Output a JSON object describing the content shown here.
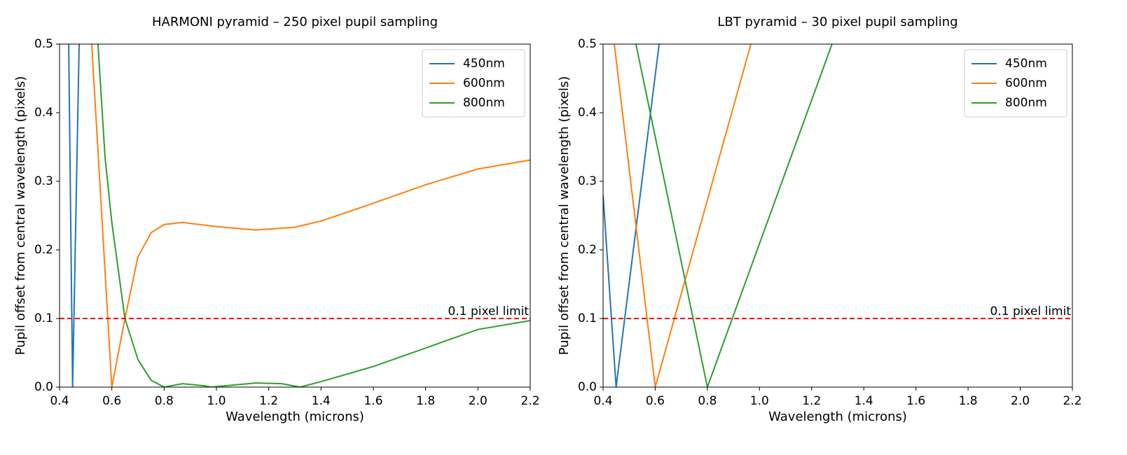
{
  "chart_data": [
    {
      "type": "line",
      "title": "HARMONI pyramid – 250 pixel pupil sampling",
      "x_label": "Wavelength (microns)",
      "y_label": "Pupil offset from central wavelength (pixels)",
      "xlim": [
        0.4,
        2.2
      ],
      "ylim": [
        0,
        0.5
      ],
      "xticks": [
        0.4,
        0.6,
        0.8,
        {
          "value": 1,
          "label": "1.0"
        },
        1.2,
        1.4,
        1.6,
        1.8,
        {
          "value": 2,
          "label": "2.0"
        },
        2.2
      ],
      "yticks": [
        {
          "value": 0,
          "label": "0.0"
        },
        0.1,
        0.2,
        0.3,
        0.4,
        0.5
      ],
      "legend": "upper right",
      "threshold": {
        "value": 0.1,
        "label": "0.1 pixel limit",
        "color": "#ff0000"
      },
      "series": [
        {
          "name": "450nm",
          "color": "#1f77b4",
          "x": [
            0.435,
            0.45,
            0.475
          ],
          "values": [
            0.5,
            0,
            0.5
          ]
        },
        {
          "name": "600nm",
          "color": "#ff7f0e",
          "x": [
            0.523,
            0.6,
            0.65,
            0.7,
            0.75,
            0.8,
            0.87,
            1.0,
            1.15,
            1.3,
            1.4,
            1.6,
            1.8,
            2.0,
            2.2
          ],
          "values": [
            0.5,
            0,
            0.1,
            0.19,
            0.225,
            0.237,
            0.24,
            0.234,
            0.229,
            0.233,
            0.242,
            0.268,
            0.295,
            0.318,
            0.331
          ]
        },
        {
          "name": "800nm",
          "color": "#2ca02c",
          "x": [
            0.547,
            0.574,
            0.6,
            0.65,
            0.7,
            0.75,
            0.8,
            0.87,
            0.95,
            0.98,
            1.15,
            1.25,
            1.32,
            1.4,
            1.6,
            1.8,
            2.0,
            2.2
          ],
          "values": [
            0.5,
            0.335,
            0.24,
            0.1,
            0.04,
            0.01,
            0,
            0.005,
            0.002,
            0,
            0.006,
            0.005,
            0,
            0.008,
            0.03,
            0.057,
            0.084,
            0.097
          ]
        }
      ]
    },
    {
      "type": "line",
      "title": "LBT pyramid – 30 pixel pupil sampling",
      "x_label": "Wavelength (microns)",
      "y_label": "Pupil offset from central wavelength (pixels)",
      "xlim": [
        0.4,
        2.2
      ],
      "ylim": [
        0,
        0.5
      ],
      "xticks": [
        0.4,
        0.6,
        0.8,
        {
          "value": 1,
          "label": "1.0"
        },
        1.2,
        1.4,
        1.6,
        1.8,
        {
          "value": 2,
          "label": "2.0"
        },
        2.2
      ],
      "yticks": [
        {
          "value": 0,
          "label": "0.0"
        },
        0.1,
        0.2,
        0.3,
        0.4,
        0.5
      ],
      "legend": "upper right",
      "threshold": {
        "value": 0.1,
        "label": "0.1 pixel limit",
        "color": "#ff0000"
      },
      "series": [
        {
          "name": "450nm",
          "color": "#1f77b4",
          "x": [
            0.4,
            0.45,
            0.615
          ],
          "values": [
            0.28,
            0,
            0.5
          ]
        },
        {
          "name": "600nm",
          "color": "#ff7f0e",
          "x": [
            0.443,
            0.6,
            0.967
          ],
          "values": [
            0.5,
            0,
            0.5
          ]
        },
        {
          "name": "800nm",
          "color": "#2ca02c",
          "x": [
            0.526,
            0.8,
            1.278
          ],
          "values": [
            0.5,
            0,
            0.5
          ]
        }
      ]
    }
  ]
}
